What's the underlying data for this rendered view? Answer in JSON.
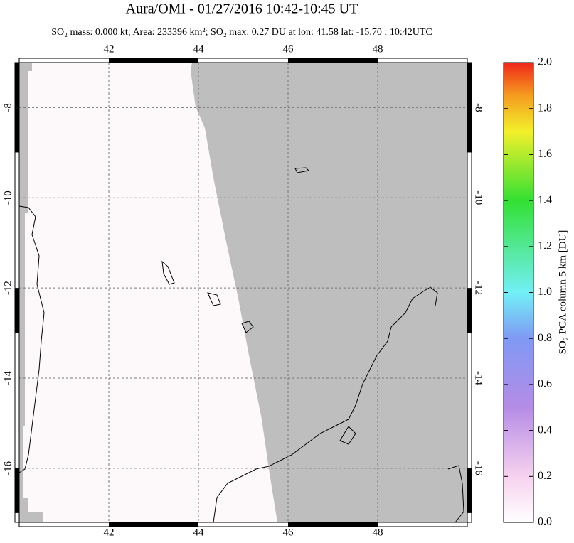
{
  "chart_data": {
    "type": "map",
    "title": "Aura/OMI - 01/27/2016 10:42-10:45 UT",
    "subtitle": "SO₂ mass: 0.000 kt; Area: 233396 km²; SO₂ max: 0.27 DU at lon: 41.58 lat: -15.70 ; 10:42UTC",
    "xlim": [
      40,
      50
    ],
    "ylim": [
      -17.2,
      -7
    ],
    "xticks": [
      42,
      44,
      46,
      48
    ],
    "yticks": [
      -8,
      -10,
      -12,
      -14,
      -16
    ],
    "grid": true,
    "colorbar": {
      "label": "SO₂ PCA column 5 km [DU]",
      "lim": [
        0,
        2
      ],
      "ticks": [
        {
          "value": 0,
          "label": "0.0"
        },
        {
          "value": 0.2,
          "label": "0.2"
        },
        {
          "value": 0.4,
          "label": "0.4"
        },
        {
          "value": 0.6,
          "label": "0.6"
        },
        {
          "value": 0.8,
          "label": "0.8"
        },
        {
          "value": 1,
          "label": "1.0"
        },
        {
          "value": 1.2,
          "label": "1.2"
        },
        {
          "value": 1.4,
          "label": "1.4"
        },
        {
          "value": 1.6,
          "label": "1.6"
        },
        {
          "value": 1.8,
          "label": "1.8"
        },
        {
          "value": 2,
          "label": "2.0"
        }
      ]
    }
  }
}
